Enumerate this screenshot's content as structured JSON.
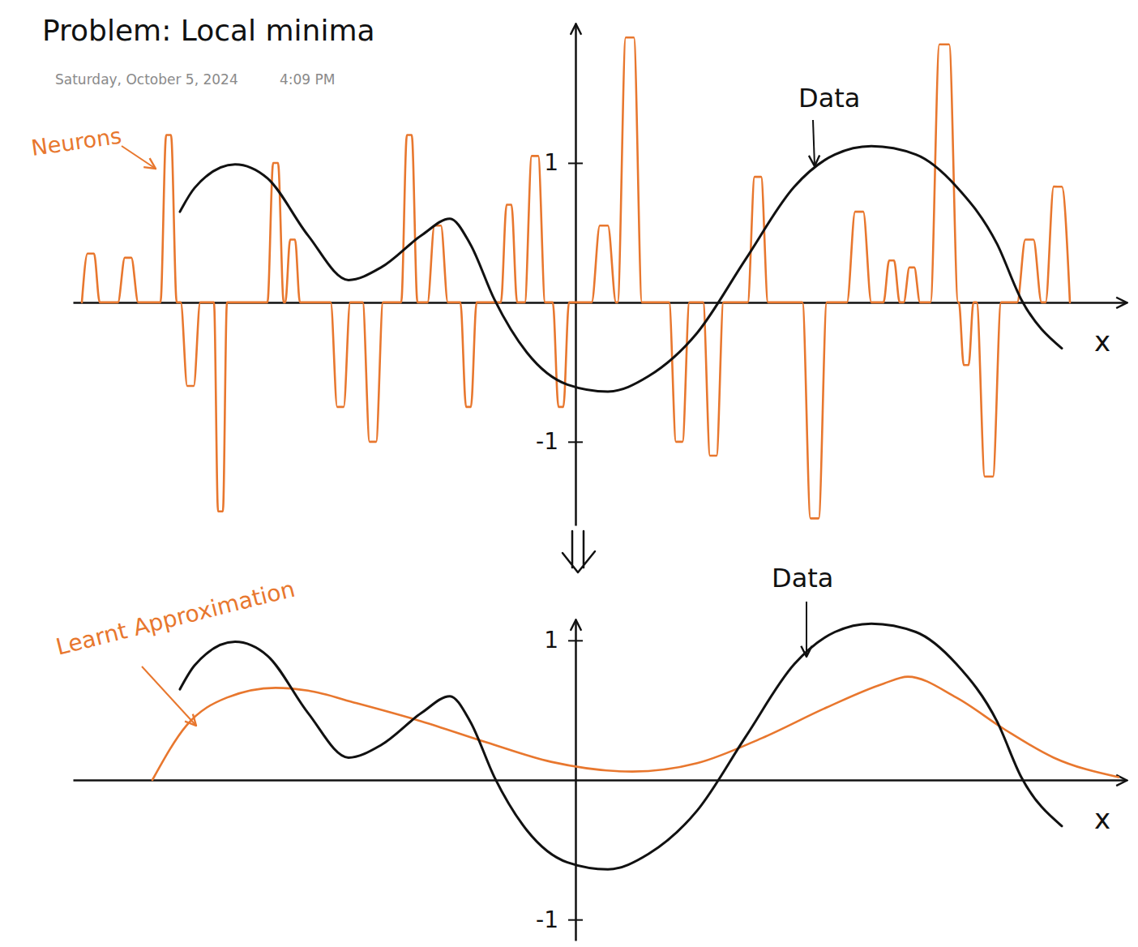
{
  "chart_data": [
    {
      "type": "line",
      "title": "Problem: Local minima",
      "subtitle": "Saturday, October 5, 2024",
      "annotations": [
        "4:09 PM"
      ],
      "xlabel": "x",
      "xlim": [
        -6.2,
        6.8
      ],
      "ylim": [
        -1.6,
        2.0
      ],
      "yticks": [
        -1,
        1
      ],
      "tick_labels": "y",
      "series": [
        {
          "name": "Data",
          "color": "#111111",
          "x": [
            -4.88,
            -4.7,
            -4.2,
            -3.8,
            -3.3,
            -2.8,
            -2.4,
            -1.9,
            -1.55,
            -1.3,
            -1.0,
            -0.6,
            -0.1,
            0.4,
            0.9,
            1.5,
            2.1,
            2.7,
            3.2,
            3.65,
            4.2,
            4.7,
            5.2,
            5.5,
            6.0
          ],
          "values": [
            0.65,
            0.82,
            0.99,
            0.89,
            0.48,
            0.16,
            0.25,
            0.48,
            0.6,
            0.42,
            0.02,
            -0.36,
            -0.59,
            -0.64,
            -0.53,
            -0.22,
            0.31,
            0.83,
            1.06,
            1.12,
            1.06,
            0.83,
            0.42,
            0.02,
            -0.33
          ]
        },
        {
          "name": "Neurons",
          "color": "#e8772e",
          "x": [
            -6.09,
            -6.02,
            -5.94,
            -5.87,
            -5.645,
            -5.56,
            -5.48,
            -5.395,
            -5.12,
            -5.05,
            -4.99,
            -4.92,
            -4.87,
            -4.79,
            -4.71,
            -4.63,
            -4.46,
            -4.41,
            -4.35,
            -4.3,
            -3.8,
            -3.73,
            -3.67,
            -3.6,
            -3.58,
            -3.52,
            -3.46,
            -3.4,
            -3.02,
            -2.94,
            -2.86,
            -2.78,
            -2.625,
            -2.54,
            -2.46,
            -2.375,
            -2.15,
            -2.08,
            -2.02,
            -1.95,
            -1.825,
            -1.74,
            -1.66,
            -1.575,
            -1.42,
            -1.35,
            -1.29,
            -1.22,
            -0.92,
            -0.85,
            -0.79,
            -0.72,
            -0.625,
            -0.54,
            -0.46,
            -0.375,
            -0.28,
            -0.21,
            -0.15,
            -0.08,
            0.2,
            0.3,
            0.4,
            0.5,
            0.52,
            0.62,
            0.72,
            0.82,
            1.155,
            1.24,
            1.32,
            1.405,
            1.575,
            1.66,
            1.74,
            1.825,
            2.125,
            2.21,
            2.29,
            2.375,
            2.8,
            2.9,
            3.0,
            3.1,
            3.35,
            3.45,
            3.55,
            3.65,
            3.8,
            3.87,
            3.93,
            4.0,
            4.05,
            4.12,
            4.18,
            4.25,
            4.38,
            4.49,
            4.61,
            4.72,
            4.73,
            4.79,
            4.85,
            4.91,
            4.95,
            5.05,
            5.15,
            5.25,
            5.45,
            5.55,
            5.65,
            5.75,
            5.8,
            5.9,
            6.0,
            6.1
          ],
          "values": [
            0,
            0.35,
            0.35,
            0,
            0,
            0.32,
            0.32,
            0,
            0,
            1.2,
            1.2,
            0,
            0,
            -0.6,
            -0.6,
            0,
            0,
            -1.5,
            -1.5,
            0,
            0,
            1.0,
            1.0,
            0,
            0,
            0.45,
            0.45,
            0,
            0,
            -0.75,
            -0.75,
            0,
            0,
            -1.0,
            -1.0,
            0,
            0,
            1.2,
            1.2,
            0,
            0,
            0.55,
            0.55,
            0,
            0,
            -0.75,
            -0.75,
            0,
            0,
            0.7,
            0.7,
            0,
            0,
            1.05,
            1.05,
            0,
            0,
            -0.75,
            -0.75,
            0,
            0,
            0.55,
            0.55,
            0,
            0,
            1.9,
            1.9,
            0,
            0,
            -1.0,
            -1.0,
            0,
            0,
            -1.1,
            -1.1,
            0,
            0,
            0.9,
            0.9,
            0,
            0,
            -1.55,
            -1.55,
            0,
            0,
            0.65,
            0.65,
            0,
            0,
            0.3,
            0.3,
            0,
            0,
            0.25,
            0.25,
            0,
            0,
            1.85,
            1.85,
            0,
            0,
            -0.45,
            -0.45,
            0,
            0,
            -1.25,
            -1.25,
            0,
            0,
            0.45,
            0.45,
            0,
            0,
            0.83,
            0.83,
            0
          ]
        }
      ]
    },
    {
      "type": "line",
      "xlabel": "x",
      "xlim": [
        -6.2,
        6.8
      ],
      "ylim": [
        -1.15,
        1.15
      ],
      "yticks": [
        -1,
        1
      ],
      "tick_labels": "y",
      "series": [
        {
          "name": "Data",
          "color": "#111111",
          "x": [
            -4.88,
            -4.7,
            -4.2,
            -3.8,
            -3.3,
            -2.8,
            -2.4,
            -1.9,
            -1.55,
            -1.3,
            -1.0,
            -0.6,
            -0.1,
            0.4,
            0.9,
            1.5,
            2.1,
            2.7,
            3.2,
            3.65,
            4.2,
            4.7,
            5.2,
            5.5,
            6.0
          ],
          "values": [
            0.65,
            0.82,
            0.99,
            0.89,
            0.48,
            0.16,
            0.25,
            0.48,
            0.6,
            0.42,
            0.02,
            -0.36,
            -0.59,
            -0.64,
            -0.53,
            -0.22,
            0.31,
            0.83,
            1.06,
            1.12,
            1.06,
            0.83,
            0.42,
            0.02,
            -0.33
          ]
        },
        {
          "name": "Learnt Approximation",
          "color": "#e8772e",
          "x": [
            -5.22,
            -4.8,
            -4.3,
            -3.7,
            -3.3,
            -2.7,
            -1.9,
            -1.1,
            -0.3,
            0.7,
            1.5,
            2.3,
            3.1,
            3.8,
            4.1,
            4.7,
            5.3,
            5.9,
            6.7
          ],
          "values": [
            0,
            0.39,
            0.59,
            0.66,
            0.64,
            0.55,
            0.42,
            0.27,
            0.13,
            0.06,
            0.12,
            0.3,
            0.52,
            0.69,
            0.74,
            0.59,
            0.36,
            0.16,
            0.02
          ]
        }
      ]
    }
  ]
}
